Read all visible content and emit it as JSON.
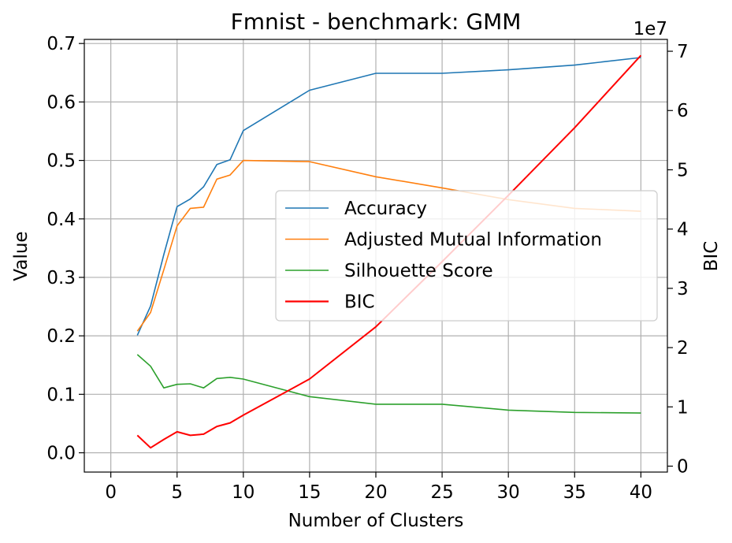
{
  "chart_data": {
    "type": "line",
    "title": "Fmnist - benchmark: GMM",
    "xlabel": "Number of Clusters",
    "ylabel": "Value",
    "y2label": "BIC",
    "y2_offset_label": "1e7",
    "xlim": [
      -2,
      42
    ],
    "ylim": [
      -0.033,
      0.707
    ],
    "y2lim": [
      -0.1,
      7.2
    ],
    "xticks": [
      0,
      5,
      10,
      15,
      20,
      25,
      30,
      35,
      40
    ],
    "yticks": [
      "0.0",
      "0.1",
      "0.2",
      "0.3",
      "0.4",
      "0.5",
      "0.6",
      "0.7"
    ],
    "y2ticks": [
      "0",
      "1",
      "2",
      "3",
      "4",
      "5",
      "6",
      "7"
    ],
    "grid": true,
    "legend_position": "center-right",
    "series": [
      {
        "name": "Accuracy",
        "axis": "left",
        "color": "#1f77b4",
        "x": [
          2,
          3,
          4,
          5,
          6,
          7,
          8,
          9,
          10,
          15,
          20,
          25,
          30,
          35,
          40
        ],
        "y": [
          0.201,
          0.251,
          0.339,
          0.421,
          0.434,
          0.455,
          0.493,
          0.501,
          0.551,
          0.62,
          0.649,
          0.649,
          0.655,
          0.663,
          0.676
        ]
      },
      {
        "name": "Adjusted Mutual Information",
        "axis": "left",
        "color": "#ff7f0e",
        "x": [
          2,
          3,
          4,
          5,
          6,
          7,
          8,
          9,
          10,
          15,
          20,
          25,
          30,
          35,
          40
        ],
        "y": [
          0.208,
          0.24,
          0.313,
          0.388,
          0.418,
          0.42,
          0.468,
          0.475,
          0.5,
          0.498,
          0.472,
          0.453,
          0.433,
          0.418,
          0.413
        ]
      },
      {
        "name": "Silhouette Score",
        "axis": "left",
        "color": "#2ca02c",
        "x": [
          2,
          3,
          4,
          5,
          6,
          7,
          8,
          9,
          10,
          15,
          20,
          25,
          30,
          35,
          40
        ],
        "y": [
          0.168,
          0.148,
          0.111,
          0.117,
          0.118,
          0.111,
          0.127,
          0.129,
          0.126,
          0.096,
          0.083,
          0.083,
          0.073,
          0.069,
          0.068
        ]
      },
      {
        "name": "BIC",
        "axis": "right",
        "color": "#ff0000",
        "x": [
          2,
          3,
          4,
          5,
          6,
          7,
          8,
          9,
          10,
          15,
          20,
          25,
          30,
          35,
          40
        ],
        "y": [
          0.52,
          0.31,
          0.45,
          0.58,
          0.52,
          0.54,
          0.67,
          0.73,
          0.86,
          1.47,
          2.35,
          3.45,
          4.57,
          5.71,
          6.93
        ]
      }
    ]
  }
}
